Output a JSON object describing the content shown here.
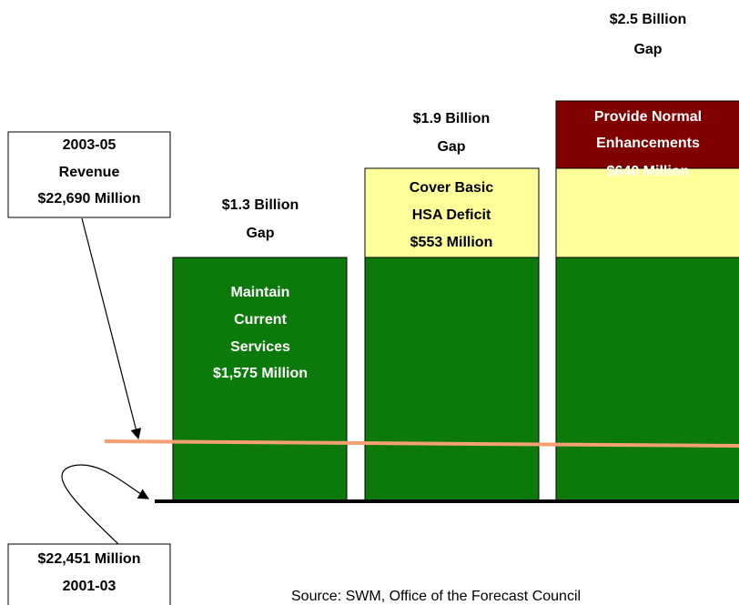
{
  "gap_labels": [
    [
      "$1.3 Billion",
      "Gap"
    ],
    [
      "$1.9 Billion",
      "Gap"
    ],
    [
      "$2.5 Billion",
      "Gap"
    ]
  ],
  "segments": {
    "maintain": [
      "Maintain",
      "Current",
      "Services",
      "$1,575 Million"
    ],
    "cover": [
      "Cover Basic",
      "HSA Deficit",
      "$553 Million"
    ],
    "enhance": [
      "Provide Normal",
      "Enhancements",
      "$640 Million"
    ]
  },
  "revenue_box": [
    "2003-05",
    "Revenue",
    "$22,690 Million"
  ],
  "base_box": [
    "$22,451 Million",
    "2001-03"
  ],
  "source": "Source: SWM, Office of the Forecast Council"
}
